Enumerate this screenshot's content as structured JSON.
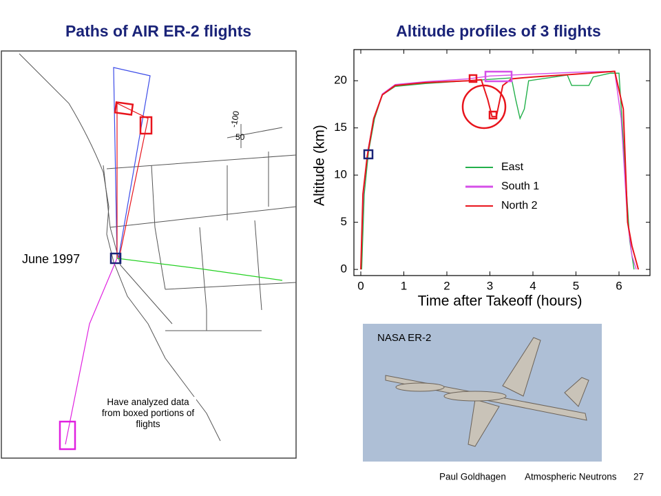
{
  "slide": {
    "left_title": "Paths of AIR ER-2 flights",
    "date_label": "June 1997",
    "note": "Have analyzed data from boxed portions of flights",
    "photo_label": "NASA ER-2",
    "footer": {
      "author": "Paul Goldhagen",
      "topic": "Atmospheric Neutrons",
      "page": "27"
    }
  },
  "map": {
    "labels": [
      "-100",
      "50"
    ]
  },
  "chart_data": {
    "type": "line",
    "title": "Altitude profiles of 3 flights",
    "x_label": "Time after Takeoff  (hours)",
    "y_label": "Altitude  (km)",
    "xlim": [
      -0.16,
      6.72
    ],
    "ylim": [
      -0.65,
      23.3
    ],
    "xticks": [
      0,
      1,
      2,
      3,
      4,
      5,
      6
    ],
    "yticks": [
      0,
      5,
      10,
      15,
      20
    ],
    "series": [
      {
        "name": "East",
        "color": "#22b04a",
        "x": [
          0.02,
          0.08,
          0.18,
          0.32,
          0.5,
          0.8,
          1.5,
          2.5,
          3.5,
          3.6,
          3.7,
          3.8,
          3.9,
          4.8,
          4.9,
          5.3,
          5.4,
          5.8,
          6.0,
          6.15,
          6.25,
          6.35
        ],
        "values": [
          0,
          8,
          12.5,
          16,
          18.5,
          19.4,
          19.7,
          20.0,
          20.3,
          18,
          16,
          17,
          20,
          20.6,
          19.5,
          19.5,
          20.4,
          20.8,
          20.8,
          10,
          3,
          0
        ]
      },
      {
        "name": "South 1",
        "color": "#d54fe8",
        "x": [
          0,
          0.06,
          0.16,
          0.3,
          0.5,
          0.8,
          1.5,
          2.5,
          3.0,
          4.0,
          5.0,
          5.9,
          6.05,
          6.2,
          6.3,
          6.4
        ],
        "values": [
          0,
          8,
          12.5,
          16,
          18.6,
          19.6,
          19.9,
          20.2,
          20.5,
          20.7,
          20.9,
          21,
          16,
          5,
          1.5,
          0
        ]
      },
      {
        "name": "North 2",
        "color": "#e8141c",
        "x": [
          0,
          0.05,
          0.15,
          0.3,
          0.5,
          0.8,
          1.5,
          2.5,
          2.8,
          2.95,
          3.05,
          3.15,
          3.3,
          3.5,
          4.0,
          5.0,
          5.9,
          6.1,
          6.2,
          6.3,
          6.45
        ],
        "values": [
          0,
          8,
          12,
          16,
          18.5,
          19.5,
          19.8,
          20.0,
          20.1,
          18,
          16.2,
          16.2,
          19.5,
          20.2,
          20.4,
          20.7,
          21,
          17,
          5,
          2.5,
          0
        ]
      }
    ]
  }
}
